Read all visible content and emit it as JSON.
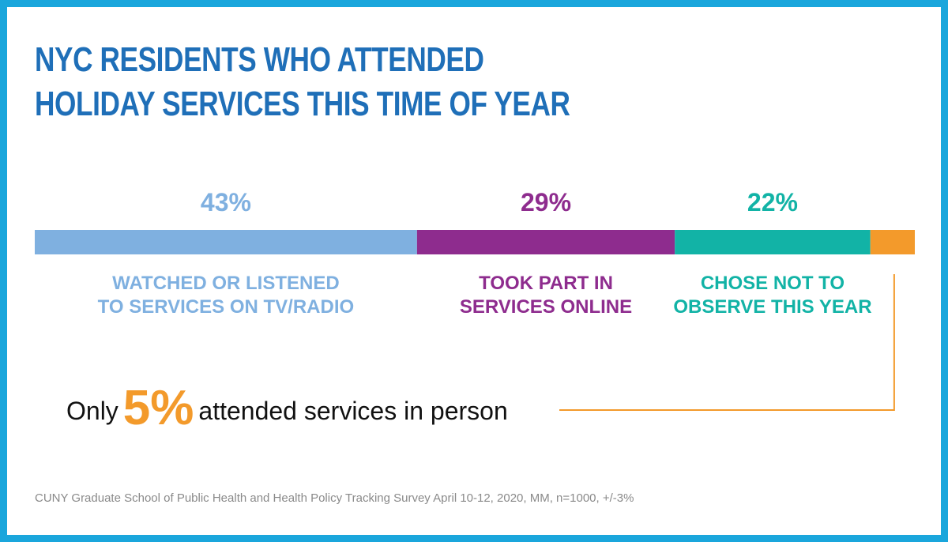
{
  "title": {
    "line1": "NYC RESIDENTS WHO ATTENDED",
    "line2": "HOLIDAY SERVICES THIS TIME OF YEAR"
  },
  "chart_data": {
    "type": "bar",
    "stacked": true,
    "orientation": "horizontal",
    "categories": [
      "WATCHED OR LISTENED TO SERVICES ON TV/RADIO",
      "TOOK PART IN SERVICES ONLINE",
      "CHOSE NOT TO OBSERVE THIS YEAR",
      "attended services in person"
    ],
    "series": [
      {
        "value": 43,
        "label": "43%",
        "color": "#7fb0e0",
        "text_color": "#7fb0e0",
        "text_lines": [
          "WATCHED OR LISTENED",
          "TO SERVICES ON TV/RADIO"
        ]
      },
      {
        "value": 29,
        "label": "29%",
        "color": "#8e2c8e",
        "text_color": "#8e2c8e",
        "text_lines": [
          "TOOK PART IN",
          "SERVICES ONLINE"
        ]
      },
      {
        "value": 22,
        "label": "22%",
        "color": "#12b3a6",
        "text_color": "#12b3a6",
        "text_lines": [
          "CHOSE NOT TO",
          "OBSERVE THIS YEAR"
        ]
      },
      {
        "value": 5,
        "label": "5%",
        "color": "#f39a2b",
        "text_color": "#f39a2b",
        "text_lines": []
      }
    ],
    "xlim": [
      0,
      99
    ]
  },
  "callout": {
    "prefix": "Only",
    "value": "5%",
    "suffix": "attended services in person",
    "line_color": "#f39a2b"
  },
  "source": "CUNY Graduate School of Public Health and Health Policy Tracking Survey April 10-12, 2020, MM, n=1000, +/-3%",
  "colors": {
    "frame": "#1aa6dc",
    "title": "#1f6fb8"
  }
}
